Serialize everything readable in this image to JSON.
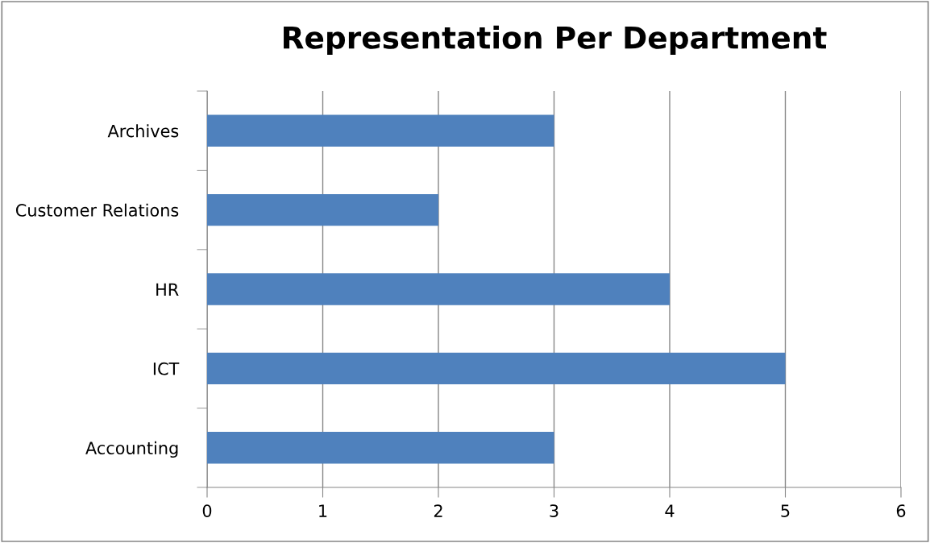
{
  "chart_data": {
    "type": "bar",
    "orientation": "horizontal",
    "title": "Representation Per Department",
    "categories": [
      "Archives",
      "Customer Relations",
      "HR",
      "ICT",
      "Accounting"
    ],
    "values": [
      3,
      2,
      4,
      5,
      3
    ],
    "color": "#4f81bd",
    "xlim": [
      0,
      6
    ],
    "xticks": [
      0,
      1,
      2,
      3,
      4,
      5,
      6
    ],
    "grid": "x",
    "legend": false
  }
}
